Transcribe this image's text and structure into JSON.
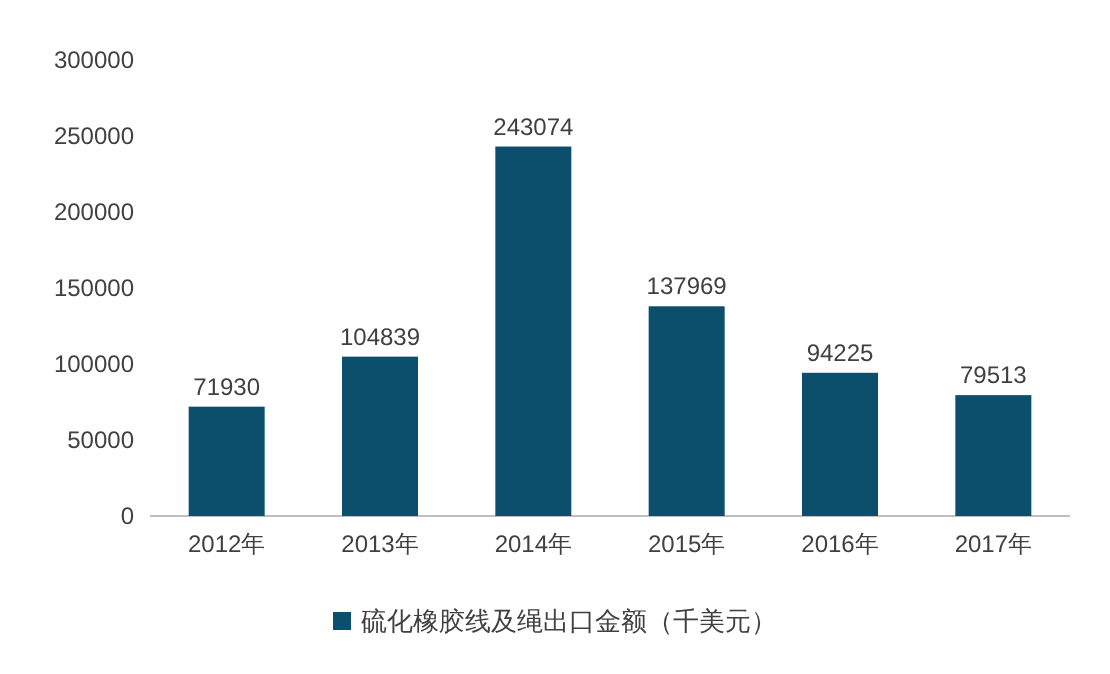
{
  "chart_data": {
    "type": "bar",
    "categories": [
      "2012年",
      "2013年",
      "2014年",
      "2015年",
      "2016年",
      "2017年"
    ],
    "series": [
      {
        "name": "硫化橡胶线及绳出口金额（千美元）",
        "color": "#0b4f6c",
        "values": [
          71930,
          104839,
          243074,
          137969,
          94225,
          79513
        ]
      }
    ],
    "ylim": [
      0,
      300000
    ],
    "yticks": [
      0,
      50000,
      100000,
      150000,
      200000,
      250000,
      300000
    ],
    "data_labels": true,
    "legend": "bottom"
  }
}
